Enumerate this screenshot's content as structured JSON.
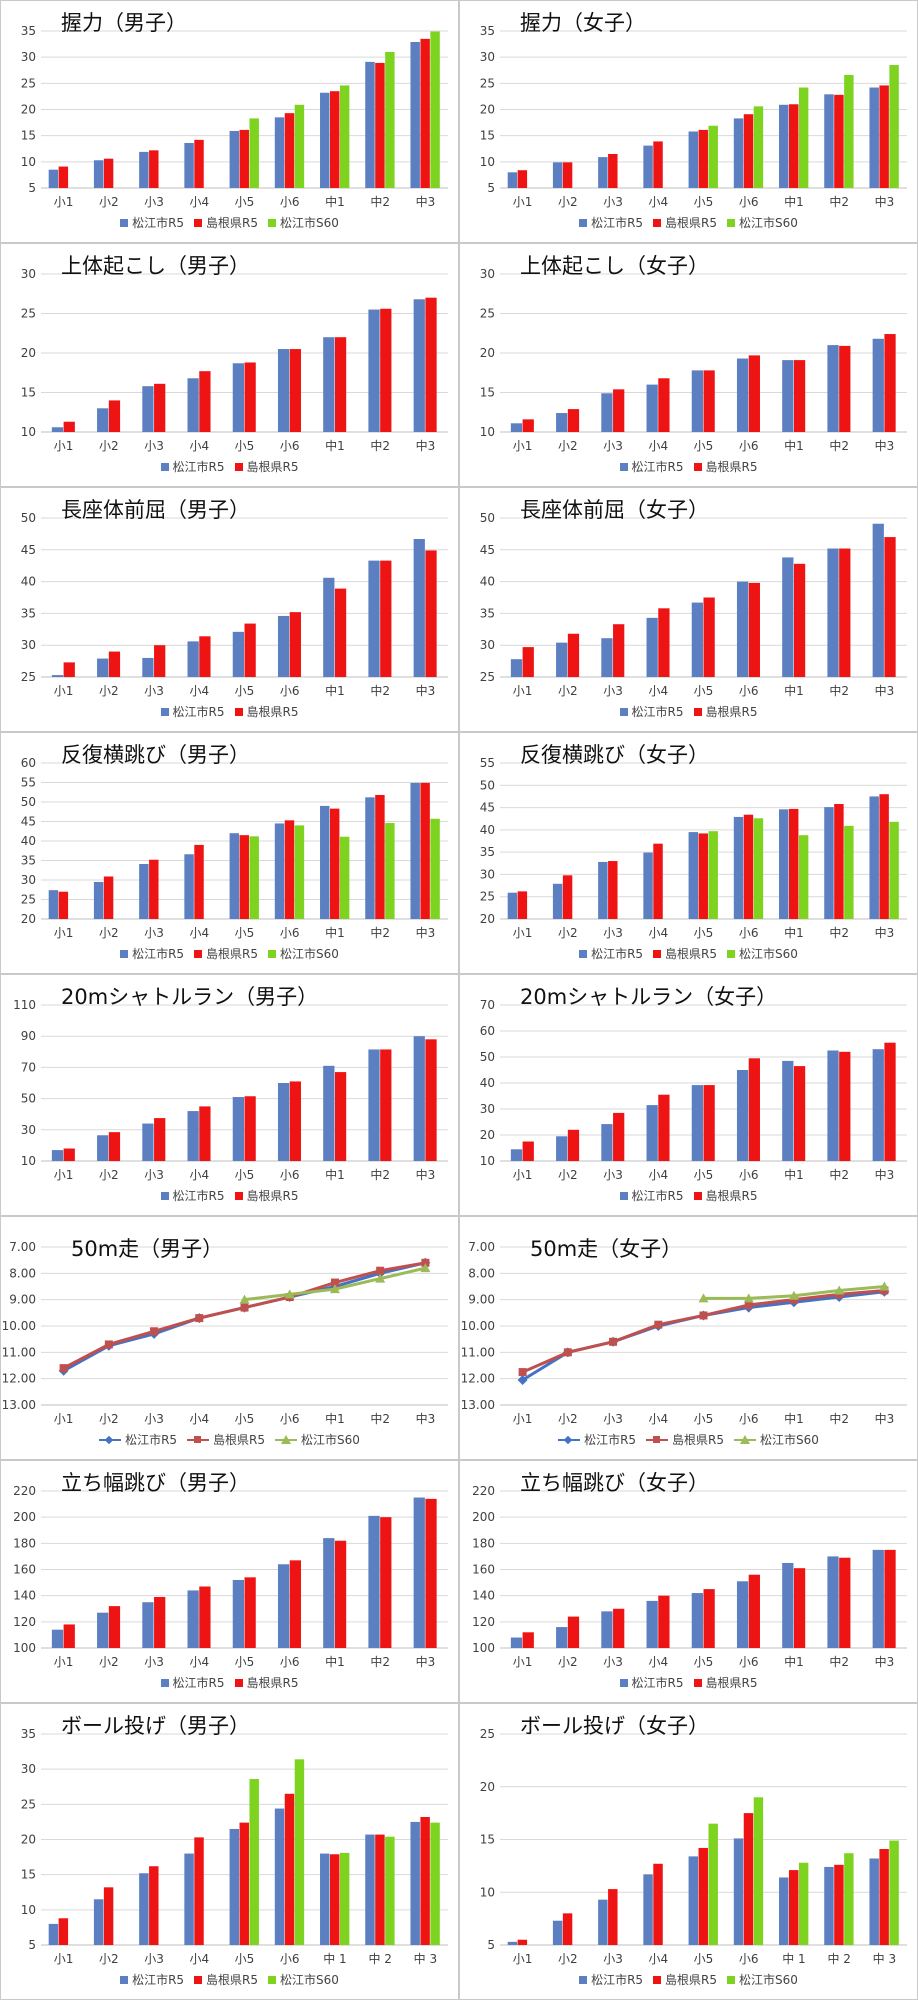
{
  "colors": {
    "matsue_r5": "#5b7fc1",
    "shimane_r5": "#ef1414",
    "matsue_s60": "#7ed321",
    "grid": "#d9d9d9",
    "axis_text": "#404040"
  },
  "chart_data": [
    {
      "type": "bar",
      "title": "握力（男子）",
      "categories": [
        "小1",
        "小2",
        "小3",
        "小4",
        "小5",
        "小6",
        "中1",
        "中2",
        "中3"
      ],
      "ylim": [
        5,
        35
      ],
      "yticks": [
        5,
        10,
        15,
        20,
        25,
        30,
        35
      ],
      "decimals": 0,
      "legend": "bottom",
      "series": [
        {
          "name": "松江市R5",
          "color": "#5b7fc1",
          "values": [
            8.5,
            10.3,
            11.9,
            13.6,
            15.9,
            18.5,
            23.2,
            29.1,
            32.9
          ]
        },
        {
          "name": "島根県R5",
          "color": "#ef1414",
          "values": [
            9.1,
            10.6,
            12.2,
            14.2,
            16.1,
            19.3,
            23.5,
            28.9,
            33.5
          ]
        },
        {
          "name": "松江市S60",
          "color": "#7ed321",
          "values": [
            null,
            null,
            null,
            null,
            18.3,
            20.9,
            24.6,
            31.0,
            34.9
          ]
        }
      ]
    },
    {
      "type": "bar",
      "title": "握力（女子）",
      "categories": [
        "小1",
        "小2",
        "小3",
        "小4",
        "小5",
        "小6",
        "中1",
        "中2",
        "中3"
      ],
      "ylim": [
        5,
        35
      ],
      "yticks": [
        5,
        10,
        15,
        20,
        25,
        30,
        35
      ],
      "decimals": 0,
      "legend": "bottom",
      "series": [
        {
          "name": "松江市R5",
          "color": "#5b7fc1",
          "values": [
            8.0,
            9.9,
            10.9,
            13.1,
            15.8,
            18.3,
            20.9,
            22.9,
            24.2
          ]
        },
        {
          "name": "島根県R5",
          "color": "#ef1414",
          "values": [
            8.4,
            9.9,
            11.5,
            13.9,
            16.1,
            19.1,
            21.0,
            22.8,
            24.6
          ]
        },
        {
          "name": "松江市S60",
          "color": "#7ed321",
          "values": [
            null,
            null,
            null,
            null,
            16.9,
            20.6,
            24.2,
            26.6,
            28.5
          ]
        }
      ]
    },
    {
      "type": "bar",
      "title": "上体起こし（男子）",
      "categories": [
        "小1",
        "小2",
        "小3",
        "小4",
        "小5",
        "小6",
        "中1",
        "中2",
        "中3"
      ],
      "ylim": [
        10,
        30
      ],
      "yticks": [
        10,
        15,
        20,
        25,
        30
      ],
      "decimals": 0,
      "legend": "bottom",
      "series": [
        {
          "name": "松江市R5",
          "color": "#5b7fc1",
          "values": [
            10.6,
            13.0,
            15.8,
            16.8,
            18.7,
            20.5,
            22.0,
            25.5,
            26.8
          ]
        },
        {
          "name": "島根県R5",
          "color": "#ef1414",
          "values": [
            11.3,
            14.0,
            16.1,
            17.7,
            18.8,
            20.5,
            22.0,
            25.6,
            27.0
          ]
        }
      ]
    },
    {
      "type": "bar",
      "title": "上体起こし（女子）",
      "categories": [
        "小1",
        "小2",
        "小3",
        "小4",
        "小5",
        "小6",
        "中1",
        "中2",
        "中3"
      ],
      "ylim": [
        10,
        30
      ],
      "yticks": [
        10,
        15,
        20,
        25,
        30
      ],
      "decimals": 0,
      "legend": "bottom",
      "series": [
        {
          "name": "松江市R5",
          "color": "#5b7fc1",
          "values": [
            11.1,
            12.4,
            14.9,
            16.0,
            17.8,
            19.3,
            19.1,
            21.0,
            21.8
          ]
        },
        {
          "name": "島根県R5",
          "color": "#ef1414",
          "values": [
            11.6,
            12.9,
            15.4,
            16.8,
            17.8,
            19.7,
            19.1,
            20.9,
            22.4
          ]
        }
      ]
    },
    {
      "type": "bar",
      "title": "長座体前屈（男子）",
      "categories": [
        "小1",
        "小2",
        "小3",
        "小4",
        "小5",
        "小6",
        "中1",
        "中2",
        "中3"
      ],
      "ylim": [
        25,
        50
      ],
      "yticks": [
        25,
        30,
        35,
        40,
        45,
        50
      ],
      "decimals": 0,
      "legend": "bottom",
      "series": [
        {
          "name": "松江市R5",
          "color": "#5b7fc1",
          "values": [
            25.3,
            27.9,
            28.0,
            30.6,
            32.1,
            34.6,
            40.6,
            43.3,
            46.7
          ]
        },
        {
          "name": "島根県R5",
          "color": "#ef1414",
          "values": [
            27.3,
            29.0,
            30.0,
            31.4,
            33.4,
            35.2,
            38.9,
            43.3,
            44.9
          ]
        }
      ]
    },
    {
      "type": "bar",
      "title": "長座体前屈（女子）",
      "categories": [
        "小1",
        "小2",
        "小3",
        "小4",
        "小5",
        "小6",
        "中1",
        "中2",
        "中3"
      ],
      "ylim": [
        25,
        50
      ],
      "yticks": [
        25,
        30,
        35,
        40,
        45,
        50
      ],
      "decimals": 0,
      "legend": "bottom",
      "series": [
        {
          "name": "松江市R5",
          "color": "#5b7fc1",
          "values": [
            27.8,
            30.4,
            31.1,
            34.3,
            36.7,
            40.0,
            43.8,
            45.2,
            49.1
          ]
        },
        {
          "name": "島根県R5",
          "color": "#ef1414",
          "values": [
            29.7,
            31.8,
            33.3,
            35.8,
            37.5,
            39.8,
            42.8,
            45.2,
            47.0
          ]
        }
      ]
    },
    {
      "type": "bar",
      "title": "反復横跳び（男子）",
      "categories": [
        "小1",
        "小2",
        "小3",
        "小4",
        "小5",
        "小6",
        "中1",
        "中2",
        "中3"
      ],
      "ylim": [
        20,
        60
      ],
      "yticks": [
        20,
        25,
        30,
        35,
        40,
        45,
        50,
        55,
        60
      ],
      "decimals": 0,
      "legend": "bottom",
      "series": [
        {
          "name": "松江市R5",
          "color": "#5b7fc1",
          "values": [
            27.4,
            29.5,
            34.1,
            36.6,
            42.0,
            44.5,
            49.0,
            51.2,
            54.9
          ]
        },
        {
          "name": "島根県R5",
          "color": "#ef1414",
          "values": [
            27.0,
            30.9,
            35.2,
            39.0,
            41.5,
            45.3,
            48.3,
            51.8,
            54.9
          ]
        },
        {
          "name": "松江市S60",
          "color": "#7ed321",
          "values": [
            null,
            null,
            null,
            null,
            41.2,
            44.0,
            41.1,
            44.6,
            45.7
          ]
        }
      ]
    },
    {
      "type": "bar",
      "title": "反復横跳び（女子）",
      "categories": [
        "小1",
        "小2",
        "小3",
        "小4",
        "小5",
        "小6",
        "中1",
        "中2",
        "中3"
      ],
      "ylim": [
        20,
        55
      ],
      "yticks": [
        20,
        25,
        30,
        35,
        40,
        45,
        50,
        55
      ],
      "decimals": 0,
      "legend": "bottom",
      "series": [
        {
          "name": "松江市R5",
          "color": "#5b7fc1",
          "values": [
            25.9,
            27.9,
            32.8,
            34.9,
            39.5,
            42.9,
            44.6,
            45.1,
            47.5
          ]
        },
        {
          "name": "島根県R5",
          "color": "#ef1414",
          "values": [
            26.2,
            29.8,
            33.0,
            36.9,
            39.2,
            43.4,
            44.7,
            45.8,
            48.0
          ]
        },
        {
          "name": "松江市S60",
          "color": "#7ed321",
          "values": [
            null,
            null,
            null,
            null,
            39.7,
            42.6,
            38.8,
            40.9,
            41.8
          ]
        }
      ]
    },
    {
      "type": "bar",
      "title": "20mシャトルラン（男子）",
      "categories": [
        "小1",
        "小2",
        "小3",
        "小4",
        "小5",
        "小6",
        "中1",
        "中2",
        "中3"
      ],
      "ylim": [
        10,
        110
      ],
      "yticks": [
        10,
        30,
        50,
        70,
        90,
        110
      ],
      "decimals": 0,
      "legend": "bottom",
      "series": [
        {
          "name": "松江市R5",
          "color": "#5b7fc1",
          "values": [
            17.0,
            26.5,
            34.0,
            42.0,
            51.0,
            60.0,
            71.0,
            81.5,
            90.0
          ]
        },
        {
          "name": "島根県R5",
          "color": "#ef1414",
          "values": [
            18.0,
            28.5,
            37.5,
            45.0,
            51.5,
            61.0,
            67.0,
            81.5,
            88.0
          ]
        }
      ]
    },
    {
      "type": "bar",
      "title": "20mシャトルラン（女子）",
      "categories": [
        "小1",
        "小2",
        "小3",
        "小4",
        "小5",
        "小6",
        "中1",
        "中2",
        "中3"
      ],
      "ylim": [
        10,
        70
      ],
      "yticks": [
        10,
        20,
        30,
        40,
        50,
        60,
        70
      ],
      "decimals": 0,
      "legend": "bottom",
      "series": [
        {
          "name": "松江市R5",
          "color": "#5b7fc1",
          "values": [
            14.5,
            19.5,
            24.2,
            31.5,
            39.2,
            45.0,
            48.5,
            52.5,
            53.0
          ]
        },
        {
          "name": "島根県R5",
          "color": "#ef1414",
          "values": [
            17.5,
            22.0,
            28.5,
            35.5,
            39.2,
            49.5,
            46.5,
            52.0,
            55.5
          ]
        }
      ]
    },
    {
      "type": "line",
      "title": "50m走（男子）",
      "categories": [
        "小1",
        "小2",
        "小3",
        "小4",
        "小5",
        "小6",
        "中1",
        "中2",
        "中3"
      ],
      "ylim": [
        13,
        7
      ],
      "yticks": [
        7,
        8,
        9,
        10,
        11,
        12,
        13
      ],
      "decimals": 2,
      "y_reversed": true,
      "legend": "bottom",
      "series": [
        {
          "name": "松江市R5",
          "color": "#4472c4",
          "marker": "diamond",
          "values": [
            11.7,
            10.75,
            10.3,
            9.7,
            9.3,
            8.9,
            8.5,
            8.0,
            7.6
          ]
        },
        {
          "name": "島根県R5",
          "color": "#c0504d",
          "marker": "square",
          "values": [
            11.6,
            10.7,
            10.2,
            9.7,
            9.3,
            8.9,
            8.35,
            7.9,
            7.6
          ]
        },
        {
          "name": "松江市S60",
          "color": "#9bbb59",
          "marker": "triangle",
          "values": [
            null,
            null,
            null,
            null,
            9.0,
            8.8,
            8.6,
            8.2,
            7.8
          ]
        }
      ]
    },
    {
      "type": "line",
      "title": "50m走（女子）",
      "categories": [
        "小1",
        "小2",
        "小3",
        "小4",
        "小5",
        "小6",
        "中1",
        "中2",
        "中3"
      ],
      "ylim": [
        13,
        7
      ],
      "yticks": [
        7,
        8,
        9,
        10,
        11,
        12,
        13
      ],
      "decimals": 2,
      "y_reversed": true,
      "legend": "bottom",
      "series": [
        {
          "name": "松江市R5",
          "color": "#4472c4",
          "marker": "diamond",
          "values": [
            12.05,
            11.0,
            10.6,
            10.0,
            9.6,
            9.3,
            9.1,
            8.9,
            8.7
          ]
        },
        {
          "name": "島根県R5",
          "color": "#c0504d",
          "marker": "square",
          "values": [
            11.75,
            11.0,
            10.6,
            9.95,
            9.6,
            9.2,
            9.0,
            8.8,
            8.65
          ]
        },
        {
          "name": "松江市S60",
          "color": "#9bbb59",
          "marker": "triangle",
          "values": [
            null,
            null,
            null,
            null,
            8.95,
            8.95,
            8.85,
            8.65,
            8.5
          ]
        }
      ]
    },
    {
      "type": "bar",
      "title": "立ち幅跳び（男子）",
      "categories": [
        "小1",
        "小2",
        "小3",
        "小4",
        "小5",
        "小6",
        "中1",
        "中2",
        "中3"
      ],
      "ylim": [
        100,
        220
      ],
      "yticks": [
        100,
        120,
        140,
        160,
        180,
        200,
        220
      ],
      "decimals": 0,
      "legend": "bottom",
      "series": [
        {
          "name": "松江市R5",
          "color": "#5b7fc1",
          "values": [
            114,
            127,
            135,
            144,
            152,
            164,
            184,
            201,
            215
          ]
        },
        {
          "name": "島根県R5",
          "color": "#ef1414",
          "values": [
            118,
            132,
            139,
            147,
            154,
            167,
            182,
            200,
            214
          ]
        }
      ]
    },
    {
      "type": "bar",
      "title": "立ち幅跳び（女子）",
      "categories": [
        "小1",
        "小2",
        "小3",
        "小4",
        "小5",
        "小6",
        "中1",
        "中2",
        "中3"
      ],
      "ylim": [
        100,
        220
      ],
      "yticks": [
        100,
        120,
        140,
        160,
        180,
        200,
        220
      ],
      "decimals": 0,
      "legend": "bottom",
      "series": [
        {
          "name": "松江市R5",
          "color": "#5b7fc1",
          "values": [
            108,
            116,
            128,
            136,
            142,
            151,
            165,
            170,
            175
          ]
        },
        {
          "name": "島根県R5",
          "color": "#ef1414",
          "values": [
            112,
            124,
            130,
            140,
            145,
            156,
            161,
            169,
            175
          ]
        }
      ]
    },
    {
      "type": "bar",
      "title": "ボール投げ（男子）",
      "categories": [
        "小1",
        "小2",
        "小3",
        "小4",
        "小5",
        "小6",
        "中 1",
        "中 2",
        "中 3"
      ],
      "ylim": [
        5,
        35
      ],
      "yticks": [
        5,
        10,
        15,
        20,
        25,
        30,
        35
      ],
      "decimals": 0,
      "legend": "bottom",
      "series": [
        {
          "name": "松江市R5",
          "color": "#5b7fc1",
          "values": [
            8.0,
            11.5,
            15.2,
            18.0,
            21.5,
            24.4,
            18.0,
            20.7,
            22.5
          ]
        },
        {
          "name": "島根県R5",
          "color": "#ef1414",
          "values": [
            8.8,
            13.2,
            16.2,
            20.3,
            22.4,
            26.5,
            17.9,
            20.7,
            23.2
          ]
        },
        {
          "name": "松江市S60",
          "color": "#7ed321",
          "values": [
            null,
            null,
            null,
            null,
            28.6,
            31.4,
            18.1,
            20.4,
            22.4
          ]
        }
      ]
    },
    {
      "type": "bar",
      "title": "ボール投げ（女子）",
      "categories": [
        "小1",
        "小2",
        "小3",
        "小4",
        "小5",
        "小6",
        "中 1",
        "中 2",
        "中 3"
      ],
      "ylim": [
        5,
        25
      ],
      "yticks": [
        5,
        10,
        15,
        20,
        25
      ],
      "decimals": 0,
      "legend": "bottom",
      "series": [
        {
          "name": "松江市R5",
          "color": "#5b7fc1",
          "values": [
            5.3,
            7.3,
            9.3,
            11.7,
            13.4,
            15.1,
            11.4,
            12.4,
            13.2
          ]
        },
        {
          "name": "島根県R5",
          "color": "#ef1414",
          "values": [
            5.5,
            8.0,
            10.3,
            12.7,
            14.2,
            17.5,
            12.1,
            12.6,
            14.1
          ]
        },
        {
          "name": "松江市S60",
          "color": "#7ed321",
          "values": [
            null,
            null,
            null,
            null,
            16.5,
            19.0,
            12.8,
            13.7,
            14.9
          ]
        }
      ]
    }
  ]
}
